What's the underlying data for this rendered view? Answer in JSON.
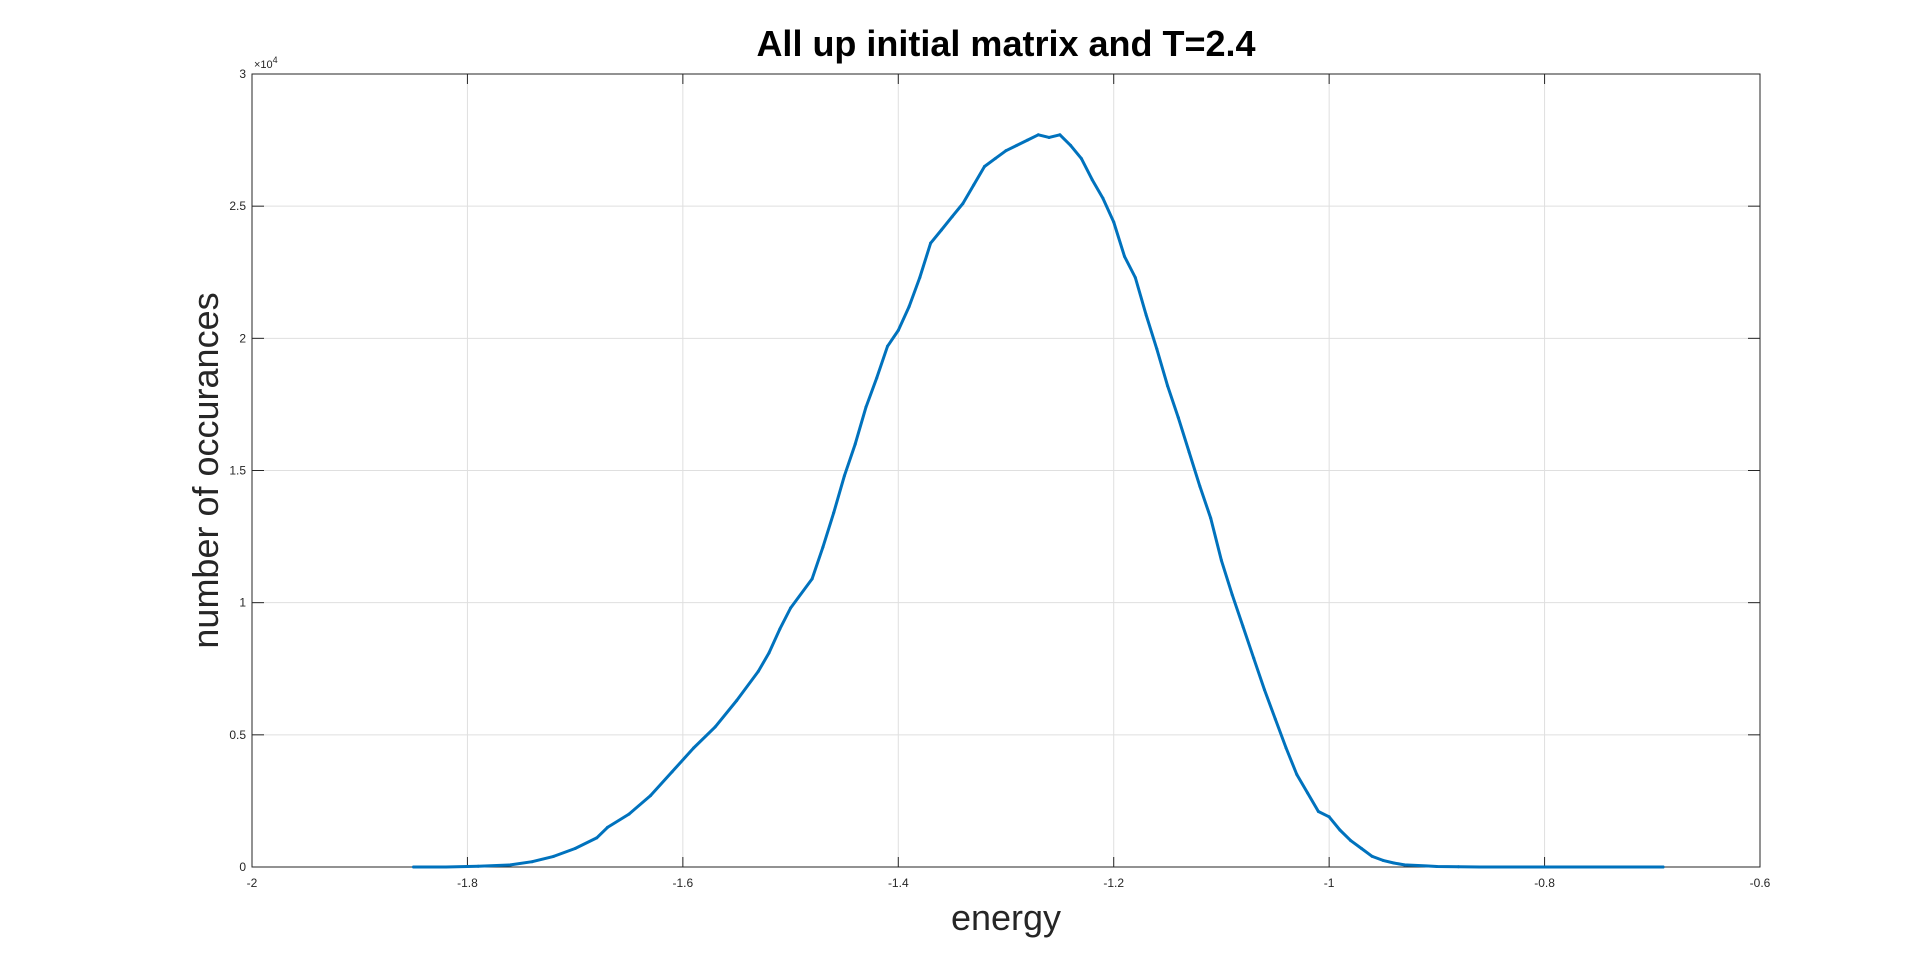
{
  "chart_data": {
    "type": "line",
    "title": "All up initial matrix and T=2.4",
    "xlabel": "energy",
    "ylabel": "number of occurances",
    "xlim": [
      -2,
      -0.6
    ],
    "ylim": [
      0,
      30000
    ],
    "x_ticks": [
      -2,
      -1.8,
      -1.6,
      -1.4,
      -1.2,
      -1,
      -0.8,
      -0.6
    ],
    "x_tick_labels": [
      "-2",
      "-1.8",
      "-1.6",
      "-1.4",
      "-1.2",
      "-1",
      "-0.8",
      "-0.6"
    ],
    "y_ticks": [
      0,
      5000,
      10000,
      15000,
      20000,
      25000,
      30000
    ],
    "y_tick_labels": [
      "0",
      "0.5",
      "1",
      "1.5",
      "2",
      "2.5",
      "3"
    ],
    "y_exponent_label": "×10",
    "y_exponent_power": "4",
    "grid": true,
    "series": [
      {
        "color": "#0072BD",
        "x": [
          -1.85,
          -1.82,
          -1.79,
          -1.76,
          -1.74,
          -1.72,
          -1.7,
          -1.68,
          -1.67,
          -1.65,
          -1.63,
          -1.61,
          -1.59,
          -1.57,
          -1.55,
          -1.53,
          -1.52,
          -1.51,
          -1.5,
          -1.48,
          -1.47,
          -1.46,
          -1.45,
          -1.44,
          -1.43,
          -1.42,
          -1.41,
          -1.4,
          -1.39,
          -1.38,
          -1.37,
          -1.36,
          -1.35,
          -1.34,
          -1.33,
          -1.32,
          -1.31,
          -1.3,
          -1.29,
          -1.28,
          -1.27,
          -1.26,
          -1.25,
          -1.24,
          -1.23,
          -1.22,
          -1.21,
          -1.2,
          -1.19,
          -1.18,
          -1.17,
          -1.16,
          -1.15,
          -1.14,
          -1.13,
          -1.12,
          -1.11,
          -1.1,
          -1.09,
          -1.08,
          -1.07,
          -1.06,
          -1.05,
          -1.04,
          -1.03,
          -1.02,
          -1.01,
          -1.0,
          -0.99,
          -0.98,
          -0.97,
          -0.96,
          -0.95,
          -0.94,
          -0.93,
          -0.91,
          -0.9,
          -0.88,
          -0.86,
          -0.84,
          -0.82,
          -0.8,
          -0.78,
          -0.76,
          -0.74,
          -0.71,
          -0.69
        ],
        "y": [
          0,
          0,
          30,
          80,
          200,
          400,
          700,
          1100,
          1500,
          2000,
          2700,
          3600,
          4500,
          5300,
          6300,
          7400,
          8100,
          9000,
          9800,
          10900,
          12100,
          13400,
          14800,
          16000,
          17400,
          18500,
          19700,
          20300,
          21200,
          22300,
          23600,
          24100,
          24600,
          25100,
          25800,
          26500,
          26800,
          27100,
          27300,
          27500,
          27700,
          27600,
          27700,
          27300,
          26800,
          26000,
          25300,
          24400,
          23100,
          22300,
          20900,
          19600,
          18200,
          17000,
          15700,
          14400,
          13200,
          11600,
          10300,
          9100,
          7900,
          6700,
          5600,
          4500,
          3500,
          2800,
          2100,
          1900,
          1400,
          1000,
          700,
          400,
          250,
          150,
          80,
          40,
          20,
          10,
          0,
          0,
          0,
          0,
          0,
          0,
          0,
          0,
          0
        ]
      }
    ]
  }
}
